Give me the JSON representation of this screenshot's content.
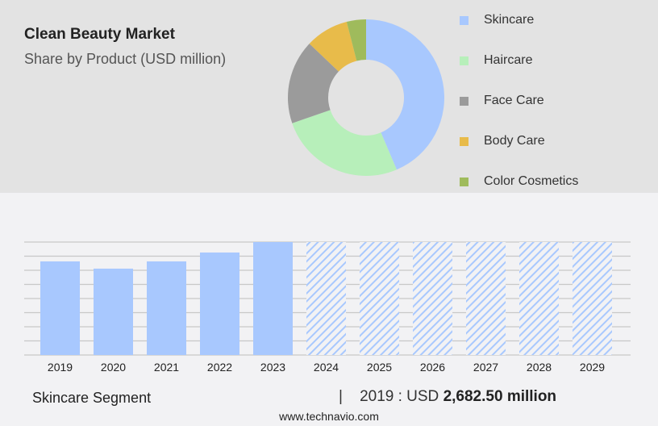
{
  "title": "Clean Beauty Market",
  "subtitle": "Share by Product (USD million)",
  "chart_data": [
    {
      "type": "pie",
      "donut": true,
      "slices": [
        {
          "name": "Skincare",
          "share": 43.6,
          "color": "#a8c8fe"
        },
        {
          "name": "Haircare",
          "share": 26.1,
          "color": "#b7efba"
        },
        {
          "name": "Face Care",
          "share": 17.4,
          "color": "#9b9b9b"
        },
        {
          "name": "Body Care",
          "share": 8.9,
          "color": "#e8bb4a"
        },
        {
          "name": "Color Cosmetics",
          "share": 4.0,
          "color": "#9fbb5c"
        }
      ],
      "legend": "right"
    },
    {
      "type": "bar",
      "categories": [
        "2019",
        "2020",
        "2021",
        "2022",
        "2023",
        "2024",
        "2025",
        "2026",
        "2027",
        "2028",
        "2029"
      ],
      "values": [
        2682.5,
        2475,
        2682.5,
        2937,
        3237,
        null,
        null,
        null,
        null,
        null,
        null
      ],
      "forecast_from": "2024",
      "color": "#a8c8fe",
      "grid": true,
      "ylim": [
        0,
        3237
      ]
    }
  ],
  "footer": {
    "segment": "Skincare Segment",
    "separator": "|",
    "year_label": "2019 : USD",
    "value": "2,682.50 million",
    "site": "www.technavio.com"
  }
}
